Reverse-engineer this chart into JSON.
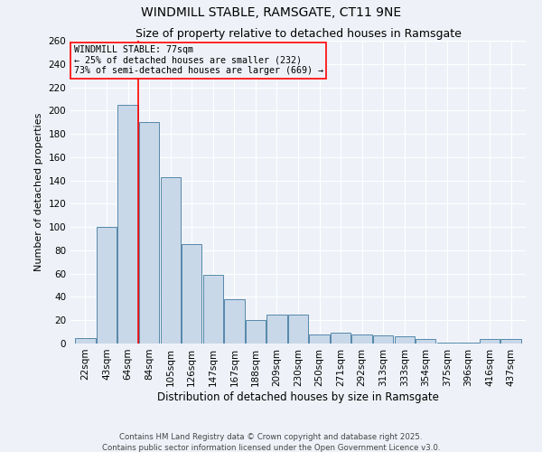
{
  "title": "WINDMILL STABLE, RAMSGATE, CT11 9NE",
  "subtitle": "Size of property relative to detached houses in Ramsgate",
  "xlabel": "Distribution of detached houses by size in Ramsgate",
  "ylabel": "Number of detached properties",
  "categories": [
    "22sqm",
    "43sqm",
    "64sqm",
    "84sqm",
    "105sqm",
    "126sqm",
    "147sqm",
    "167sqm",
    "188sqm",
    "209sqm",
    "230sqm",
    "250sqm",
    "271sqm",
    "292sqm",
    "313sqm",
    "333sqm",
    "354sqm",
    "375sqm",
    "396sqm",
    "416sqm",
    "437sqm"
  ],
  "values": [
    5,
    100,
    205,
    190,
    143,
    85,
    59,
    38,
    20,
    25,
    25,
    8,
    9,
    8,
    7,
    6,
    4,
    1,
    1,
    4,
    4
  ],
  "bar_color": "#c8d8e8",
  "bar_edge_color": "#5588aa",
  "red_line_x": 2.5,
  "red_line_label": "WINDMILL STABLE: 77sqm",
  "annotation_line1": "← 25% of detached houses are smaller (232)",
  "annotation_line2": "73% of semi-detached houses are larger (669) →",
  "ylim": [
    0,
    260
  ],
  "yticks": [
    0,
    20,
    40,
    60,
    80,
    100,
    120,
    140,
    160,
    180,
    200,
    220,
    240,
    260
  ],
  "background_color": "#eef2f8",
  "grid_color": "#ffffff",
  "title_fontsize": 10,
  "subtitle_fontsize": 9,
  "axis_label_fontsize": 8,
  "tick_fontsize": 7.5,
  "footer1": "Contains HM Land Registry data © Crown copyright and database right 2025.",
  "footer2": "Contains public sector information licensed under the Open Government Licence v3.0."
}
